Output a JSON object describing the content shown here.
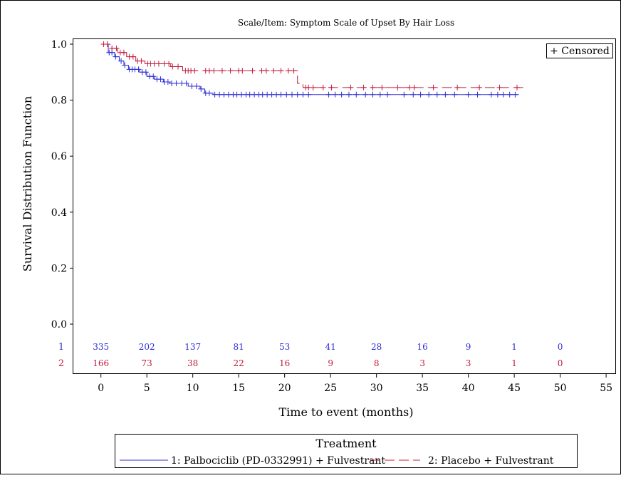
{
  "chart_data": {
    "type": "line",
    "subtitle": "Scale/Item: Symptom Scale of Upset By Hair Loss",
    "xlabel": "Time to event (months)",
    "ylabel": "Survival Distribution Function",
    "xlim": [
      -3,
      56
    ],
    "ylim": [
      -0.05,
      1.05
    ],
    "x_ticks": [
      "0",
      "5",
      "10",
      "15",
      "20",
      "25",
      "30",
      "35",
      "40",
      "45",
      "50",
      "55"
    ],
    "y_ticks": [
      "0.0",
      "0.2",
      "0.4",
      "0.6",
      "0.8",
      "1.0"
    ],
    "grid": false,
    "censor_legend": "+ Censored",
    "legend_title": "Treatment",
    "legend_position": "bottom",
    "series": [
      {
        "name": "1: Palbociclib (PD-0332991) + Fulvestrant",
        "color": "#2e2ed6",
        "dash": "solid",
        "steps": [
          [
            0,
            1.0
          ],
          [
            0.8,
            0.97
          ],
          [
            1.5,
            0.955
          ],
          [
            2.0,
            0.94
          ],
          [
            2.5,
            0.925
          ],
          [
            3.0,
            0.91
          ],
          [
            4.2,
            0.9
          ],
          [
            5.0,
            0.885
          ],
          [
            5.8,
            0.875
          ],
          [
            6.8,
            0.865
          ],
          [
            7.5,
            0.86
          ],
          [
            9.5,
            0.85
          ],
          [
            10.8,
            0.84
          ],
          [
            11.3,
            0.825
          ],
          [
            12.2,
            0.82
          ],
          [
            45.5,
            0.82
          ]
        ],
        "censored": [
          0.9,
          1.2,
          1.6,
          2.2,
          2.6,
          3.1,
          3.4,
          3.7,
          4.1,
          4.5,
          4.9,
          5.3,
          5.7,
          6.1,
          6.5,
          6.9,
          7.3,
          7.7,
          8.2,
          8.8,
          9.3,
          9.9,
          10.4,
          10.9,
          11.4,
          11.8,
          12.4,
          12.9,
          13.4,
          13.9,
          14.4,
          14.8,
          15.3,
          15.8,
          16.2,
          16.7,
          17.2,
          17.6,
          18.1,
          18.6,
          19.1,
          19.6,
          20.2,
          20.8,
          21.4,
          22.0,
          22.6,
          24.8,
          25.5,
          26.2,
          27.0,
          27.8,
          28.8,
          29.6,
          30.4,
          31.2,
          33.0,
          34.0,
          34.8,
          35.7,
          36.6,
          37.5,
          38.5,
          40.0,
          41.0,
          42.5,
          43.2,
          43.8,
          44.5,
          45.1
        ]
      },
      {
        "name": "2: Placebo + Fulvestrant",
        "color": "#c11b3a",
        "dash": "long-dash",
        "steps": [
          [
            0,
            1.0
          ],
          [
            1.0,
            0.985
          ],
          [
            1.8,
            0.97
          ],
          [
            2.8,
            0.955
          ],
          [
            3.8,
            0.94
          ],
          [
            4.8,
            0.93
          ],
          [
            7.6,
            0.92
          ],
          [
            8.9,
            0.905
          ],
          [
            11.0,
            0.905
          ],
          [
            21.4,
            0.86
          ],
          [
            22.0,
            0.845
          ],
          [
            46.0,
            0.845
          ]
        ],
        "censored": [
          0.3,
          0.7,
          1.2,
          1.7,
          2.1,
          2.5,
          3.1,
          3.5,
          4.0,
          4.4,
          5.1,
          5.4,
          5.8,
          6.3,
          6.9,
          7.4,
          7.8,
          8.4,
          9.2,
          9.5,
          9.8,
          10.2,
          11.4,
          11.8,
          12.3,
          13.2,
          14.1,
          15.0,
          15.4,
          16.5,
          17.5,
          18.0,
          18.8,
          19.6,
          20.4,
          21.0,
          22.3,
          22.6,
          23.1,
          24.2,
          25.1,
          27.2,
          28.6,
          29.6,
          30.6,
          32.3,
          33.6,
          34.1,
          36.2,
          38.8,
          41.2,
          43.4,
          45.3
        ]
      }
    ],
    "at_risk": [
      {
        "label": "1",
        "color": "#2e2ed6",
        "times": [
          0,
          5,
          10,
          15,
          20,
          25,
          30,
          35,
          40,
          45,
          50
        ],
        "counts": [
          "335",
          "202",
          "137",
          "81",
          "53",
          "41",
          "28",
          "16",
          "9",
          "1",
          "0"
        ]
      },
      {
        "label": "2",
        "color": "#c11b3a",
        "times": [
          0,
          5,
          10,
          15,
          20,
          25,
          30,
          35,
          40,
          45,
          50
        ],
        "counts": [
          "166",
          "73",
          "38",
          "22",
          "16",
          "9",
          "8",
          "3",
          "3",
          "1",
          "0"
        ]
      }
    ]
  }
}
